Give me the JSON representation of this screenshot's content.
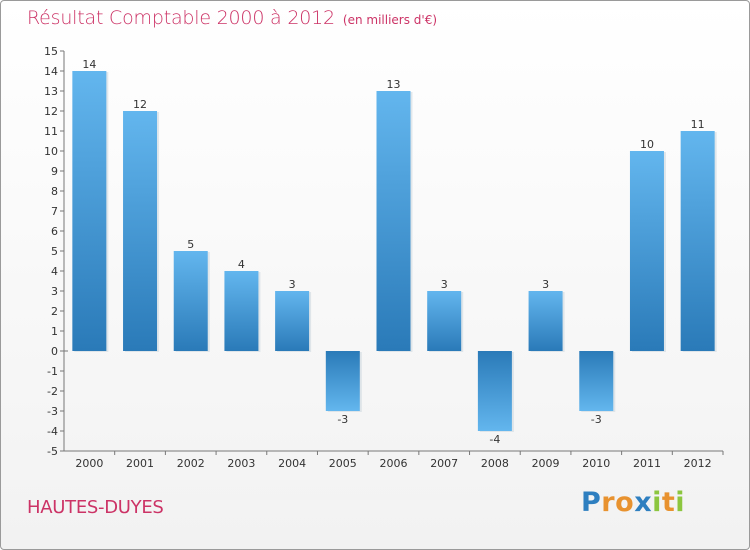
{
  "header": {
    "title": "Résultat Comptable 2000 à 2012",
    "subtitle": "(en milliers d'€)"
  },
  "footer": {
    "commune": "HAUTES-DUYES",
    "logo_letters": [
      {
        "ch": "P",
        "color": "#2e7fc0"
      },
      {
        "ch": "r",
        "color": "#e8922f"
      },
      {
        "ch": "o",
        "color": "#e8922f"
      },
      {
        "ch": "x",
        "color": "#2e7fc0"
      },
      {
        "ch": "i",
        "color": "#8cc63f"
      },
      {
        "ch": "t",
        "color": "#e8922f"
      },
      {
        "ch": "i",
        "color": "#8cc63f"
      }
    ]
  },
  "chart_data": {
    "type": "bar",
    "title": "Résultat Comptable 2000 à 2012",
    "subtitle": "(en milliers d'€)",
    "xlabel": "",
    "ylabel": "",
    "categories": [
      "2000",
      "2001",
      "2002",
      "2003",
      "2004",
      "2005",
      "2006",
      "2007",
      "2008",
      "2009",
      "2010",
      "2011",
      "2012"
    ],
    "values": [
      14,
      12,
      5,
      4,
      3,
      -3,
      13,
      3,
      -4,
      3,
      -3,
      10,
      11
    ],
    "data_labels": [
      "14",
      "12",
      "5",
      "4",
      "3",
      "-3",
      "13",
      "3",
      "-4",
      "3",
      "-3",
      "10",
      "11"
    ],
    "ylim": [
      -5,
      15
    ],
    "yticks": [
      "-5",
      "-4",
      "-3",
      "-2",
      "-1",
      "0",
      "1",
      "2",
      "3",
      "4",
      "5",
      "6",
      "7",
      "8",
      "9",
      "10",
      "11",
      "12",
      "13",
      "14",
      "15"
    ],
    "grid": false,
    "colors": {
      "bar_light": "#5eb0ea",
      "bar_dark": "#2a7ab8",
      "axis": "#666666"
    }
  }
}
